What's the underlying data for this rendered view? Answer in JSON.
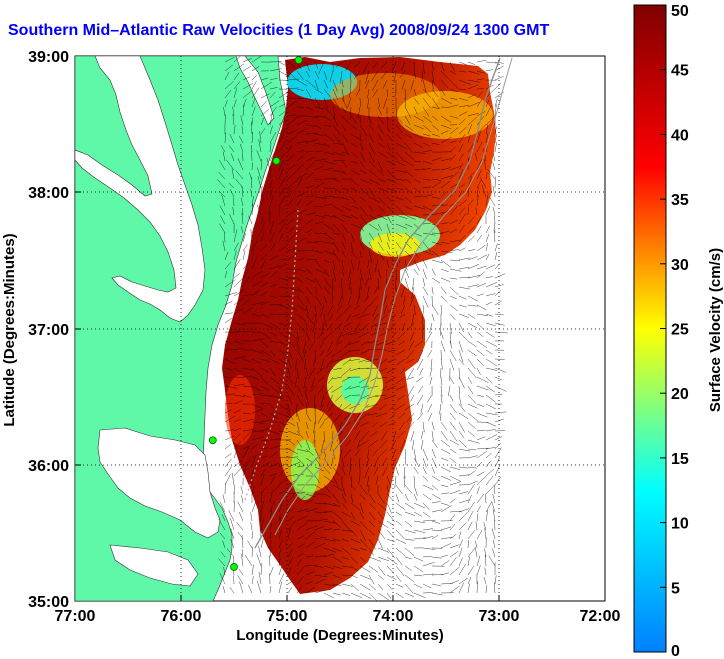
{
  "title": "Southern Mid–Atlantic Raw Velocities (1 Day Avg) 2008/09/24 1300 GMT",
  "chart_data": {
    "type": "heatmap",
    "xlabel": "Longitude (Degrees:Minutes)",
    "ylabel": "Latitude (Degrees:Minutes)",
    "x_ticks": [
      "77:00",
      "76:00",
      "75:00",
      "74:00",
      "73:00",
      "72:00"
    ],
    "y_ticks": [
      "39:00",
      "38:00",
      "37:00",
      "36:00",
      "35:00"
    ],
    "xlim": [
      -77,
      -72
    ],
    "ylim": [
      35,
      39
    ],
    "grid": true,
    "colorbar": {
      "label": "Surface Velocity (cm/s)",
      "min": 0,
      "max": 50,
      "ticks": [
        "0",
        "5",
        "10",
        "15",
        "20",
        "25",
        "30",
        "35",
        "40",
        "45",
        "50"
      ]
    },
    "land_color": "#5ff7a8",
    "sites": [
      {
        "lon": -74.89,
        "lat": 38.97
      },
      {
        "lon": -75.1,
        "lat": 38.23
      },
      {
        "lon": -75.7,
        "lat": 36.18
      },
      {
        "lon": -75.5,
        "lat": 35.25
      }
    ]
  }
}
